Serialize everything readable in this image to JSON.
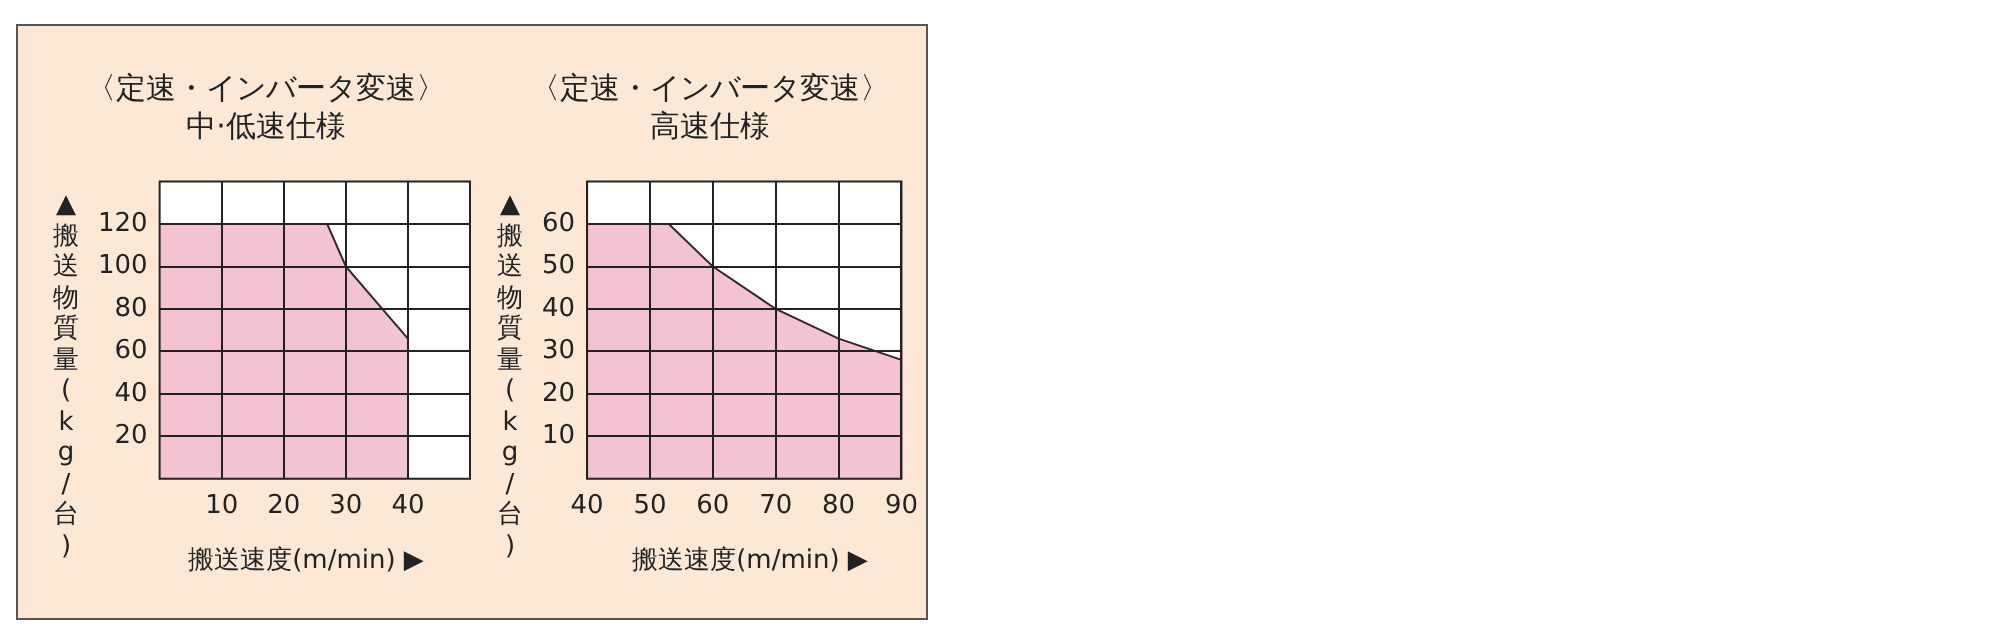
{
  "chart_data": [
    {
      "type": "area",
      "title": "〈定速・インバータ変速〉",
      "subtitle": "中·低速仕様",
      "xlabel": "搬送速度(m/min) ▶",
      "ylabel": "▲搬送物質量(kg/台)",
      "x": [
        0,
        27,
        30,
        35,
        40
      ],
      "series": [
        {
          "color": "#f4c3d2",
          "values": [
            120,
            120,
            100,
            83,
            66
          ]
        }
      ],
      "xlim": [
        0,
        50
      ],
      "xticks": [
        10,
        20,
        30,
        40
      ],
      "ylim": [
        0,
        140
      ],
      "yticks": [
        20,
        40,
        60,
        80,
        100,
        120
      ],
      "grid": true,
      "legend": false
    },
    {
      "type": "area",
      "title": "〈定速・インバータ変速〉",
      "subtitle": "高速仕様",
      "xlabel": "搬送速度(m/min) ▶",
      "ylabel": "▲搬送物質量(kg/台)",
      "x": [
        40,
        53,
        60,
        70,
        80,
        90
      ],
      "series": [
        {
          "color": "#f4c3d2",
          "values": [
            60,
            60,
            50,
            40,
            33,
            28
          ]
        }
      ],
      "xlim": [
        40,
        90
      ],
      "xticks": [
        40,
        50,
        60,
        70,
        80,
        90
      ],
      "ylim": [
        0,
        70
      ],
      "yticks": [
        10,
        20,
        30,
        40,
        50,
        60
      ],
      "grid": true,
      "legend": false
    }
  ]
}
